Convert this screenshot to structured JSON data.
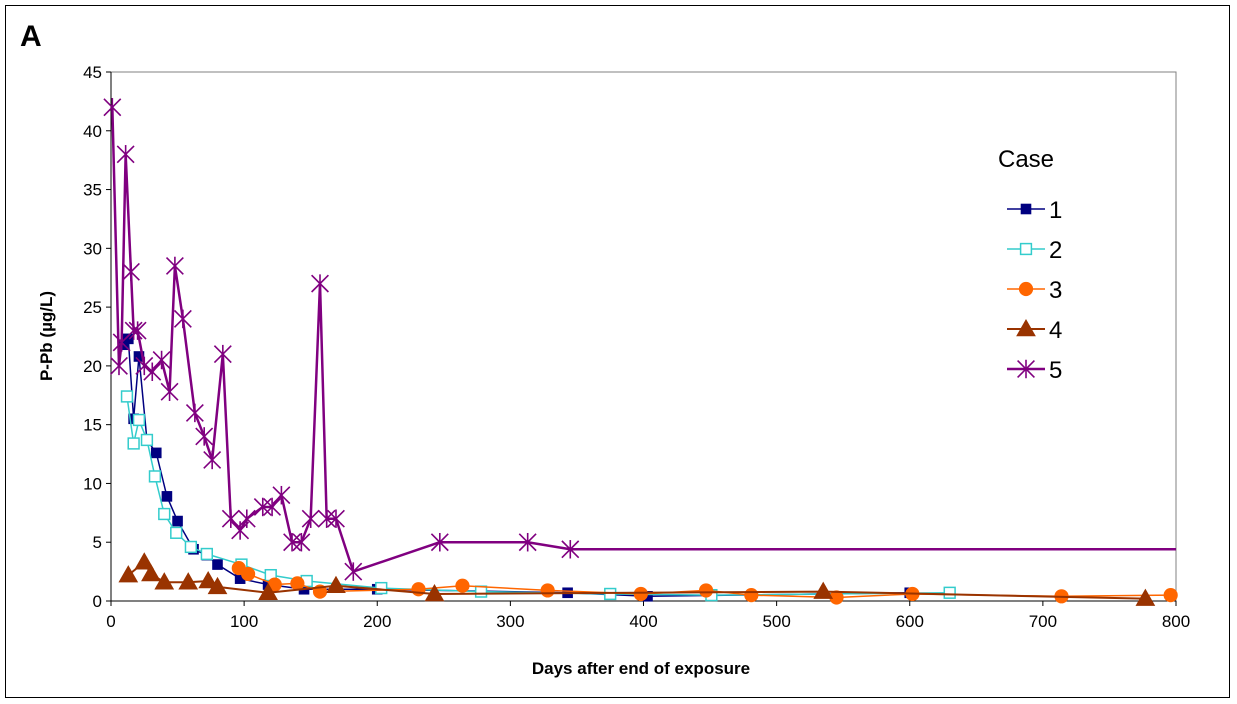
{
  "chart_data": {
    "type": "line",
    "panel_label": "A",
    "xlabel": "Days after end of exposure",
    "ylabel": "P-Pb (µg/L)",
    "xlim": [
      0,
      800
    ],
    "ylim": [
      0,
      45
    ],
    "x_ticks": [
      0,
      100,
      200,
      300,
      400,
      500,
      600,
      700,
      800
    ],
    "y_ticks": [
      0,
      5,
      10,
      15,
      20,
      25,
      30,
      35,
      40,
      45
    ],
    "grid": false,
    "legend": {
      "title": "Case",
      "position": "right"
    },
    "series": [
      {
        "name": "1",
        "color": "#000080",
        "marker": "square-filled",
        "x": [
          9,
          13,
          17,
          21,
          27,
          34,
          42,
          50,
          62,
          72,
          80,
          97,
          118,
          145,
          200,
          343,
          403,
          600
        ],
        "y": [
          21.8,
          22.3,
          15.5,
          20.8,
          13.7,
          12.6,
          8.9,
          6.8,
          4.4,
          3.9,
          3.1,
          1.9,
          1.4,
          1.0,
          1.0,
          0.7,
          0.4,
          0.7
        ]
      },
      {
        "name": "2",
        "color": "#33cccc",
        "marker": "square-open",
        "x": [
          12,
          17,
          21,
          27,
          33,
          40,
          49,
          60,
          72,
          98,
          120,
          147,
          203,
          278,
          375,
          451,
          630
        ],
        "y": [
          17.4,
          13.4,
          15.4,
          13.7,
          10.6,
          7.4,
          5.8,
          4.6,
          4.0,
          3.1,
          2.2,
          1.7,
          1.1,
          0.8,
          0.6,
          0.5,
          0.7
        ]
      },
      {
        "name": "3",
        "color": "#ff6600",
        "marker": "circle-filled",
        "x": [
          96,
          103,
          123,
          140,
          157,
          231,
          264,
          328,
          398,
          447,
          481,
          545,
          602,
          714,
          796
        ],
        "y": [
          2.8,
          2.3,
          1.4,
          1.5,
          0.8,
          1.0,
          1.3,
          0.9,
          0.6,
          0.9,
          0.5,
          0.3,
          0.6,
          0.4,
          0.5
        ]
      },
      {
        "name": "4",
        "color": "#993300",
        "marker": "triangle-filled",
        "x": [
          13,
          25,
          30,
          40,
          58,
          73,
          80,
          118,
          169,
          243,
          535,
          777
        ],
        "y": [
          2.2,
          3.3,
          2.3,
          1.6,
          1.6,
          1.7,
          1.2,
          0.7,
          1.3,
          0.6,
          0.8,
          0.2
        ]
      },
      {
        "name": "5",
        "color": "#800080",
        "marker": "asterisk",
        "x": [
          1,
          6,
          8,
          11,
          15,
          17,
          20,
          25,
          31,
          38,
          44,
          48,
          54,
          63,
          70,
          76,
          84,
          90,
          97,
          102,
          114,
          121,
          128,
          136,
          143,
          150,
          157,
          162,
          169,
          182,
          247,
          313,
          345,
          800
        ],
        "y": [
          42,
          20,
          22,
          38,
          28,
          23,
          23,
          20,
          19.5,
          20.5,
          17.8,
          28.5,
          24,
          16,
          14,
          12,
          21,
          7,
          6,
          7,
          8,
          8,
          9,
          5,
          5,
          7,
          27,
          7,
          7,
          2.5,
          5,
          5,
          4.4,
          4.4
        ]
      }
    ]
  }
}
